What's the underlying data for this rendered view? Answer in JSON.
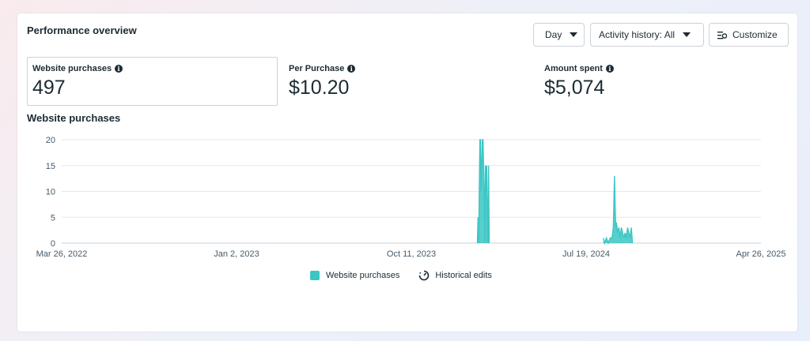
{
  "header": {
    "title": "Performance overview",
    "day_label": "Day",
    "activity_label": "Activity history: All",
    "customize_label": "Customize"
  },
  "metrics": [
    {
      "label": "Website purchases",
      "value": "497",
      "selected": true
    },
    {
      "label": "Per Purchase",
      "value": "$10.20",
      "selected": false
    },
    {
      "label": "Amount spent",
      "value": "$5,074",
      "selected": false
    }
  ],
  "chart_section_title": "Website purchases",
  "legend": {
    "series_label": "Website purchases",
    "edits_label": "Historical edits"
  },
  "colors": {
    "series": "#3bc6c4",
    "grid": "#e4e7eb",
    "text": "#1c2b33"
  },
  "chart_data": {
    "type": "area",
    "x_tick_labels": [
      "Mar 26, 2022",
      "Jan 2, 2023",
      "Oct 11, 2023",
      "Jul 19, 2024",
      "Apr 26, 2025"
    ],
    "x_range": [
      "2022-03-26",
      "2025-04-26"
    ],
    "y_ticks": [
      0,
      5,
      10,
      15,
      20
    ],
    "ylim": [
      0,
      20
    ],
    "grid": true,
    "legend_position": "bottom",
    "series": [
      {
        "name": "Website purchases",
        "points": [
          [
            "2024-01-25",
            0
          ],
          [
            "2024-01-26",
            5
          ],
          [
            "2024-01-27",
            0
          ],
          [
            "2024-01-28",
            10
          ],
          [
            "2024-01-29",
            20
          ],
          [
            "2024-01-30",
            20
          ],
          [
            "2024-01-31",
            10
          ],
          [
            "2024-02-01",
            15
          ],
          [
            "2024-02-02",
            20
          ],
          [
            "2024-02-03",
            20
          ],
          [
            "2024-02-04",
            15
          ],
          [
            "2024-02-05",
            10
          ],
          [
            "2024-02-06",
            0
          ],
          [
            "2024-02-07",
            15
          ],
          [
            "2024-02-08",
            10
          ],
          [
            "2024-02-09",
            15
          ],
          [
            "2024-02-10",
            5
          ],
          [
            "2024-02-11",
            0
          ],
          [
            "2024-02-12",
            15
          ],
          [
            "2024-02-13",
            0
          ],
          [
            "2024-08-15",
            1
          ],
          [
            "2024-08-17",
            0
          ],
          [
            "2024-08-20",
            1
          ],
          [
            "2024-08-23",
            0
          ],
          [
            "2024-08-26",
            1
          ],
          [
            "2024-08-29",
            1
          ],
          [
            "2024-08-31",
            3
          ],
          [
            "2024-09-01",
            8
          ],
          [
            "2024-09-02",
            13
          ],
          [
            "2024-09-03",
            7
          ],
          [
            "2024-09-04",
            3
          ],
          [
            "2024-09-05",
            4
          ],
          [
            "2024-09-07",
            2
          ],
          [
            "2024-09-09",
            3
          ],
          [
            "2024-09-11",
            1
          ],
          [
            "2024-09-13",
            3
          ],
          [
            "2024-09-15",
            2
          ],
          [
            "2024-09-17",
            1
          ],
          [
            "2024-09-19",
            2
          ],
          [
            "2024-09-21",
            1
          ],
          [
            "2024-09-23",
            3
          ],
          [
            "2024-09-25",
            2
          ],
          [
            "2024-09-27",
            1
          ],
          [
            "2024-09-29",
            3
          ],
          [
            "2024-10-01",
            0
          ]
        ]
      }
    ]
  }
}
